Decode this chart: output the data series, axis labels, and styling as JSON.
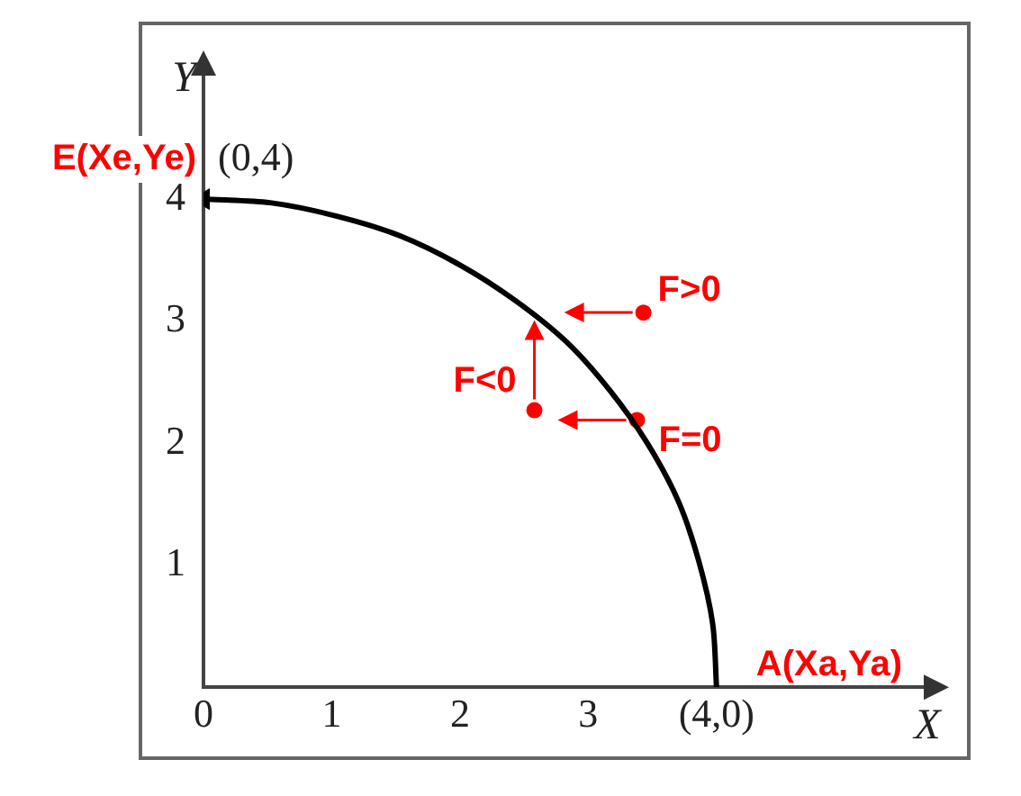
{
  "chart_data": {
    "type": "line",
    "xlabel": "X",
    "ylabel": "Y",
    "x": [
      4,
      3.97,
      3.86,
      3.7,
      3.46,
      3.17,
      2.83,
      2.43,
      2,
      1.53,
      1.04,
      0.52,
      0
    ],
    "series": [
      {
        "color": "#000000",
        "values": [
          0,
          0.52,
          1.04,
          1.53,
          2,
          2.43,
          2.83,
          3.17,
          3.46,
          3.7,
          3.86,
          3.97,
          4
        ]
      },
      {
        "type": "scatter",
        "color": "#ff0000",
        "x": [
          3.43,
          3.38,
          2.58
        ],
        "values": [
          3.07,
          2.19,
          2.27
        ],
        "marker": "circle"
      }
    ],
    "xlim": [
      0,
      5.7
    ],
    "ylim": [
      0,
      5.1
    ],
    "xticks": [
      0,
      1,
      2,
      3,
      {
        "value": 4,
        "label": "(4,0)"
      }
    ],
    "yticks": [
      1,
      2,
      3,
      4
    ],
    "grid": false,
    "legend": false,
    "annotations": [
      {
        "text": "E(Xe,Ye)",
        "x": 0,
        "y": 4
      },
      {
        "text": "(0,4)",
        "x": 0,
        "y": 4
      },
      {
        "text": "A(Xa,Ya)",
        "x": 4,
        "y": 0
      },
      {
        "text": "F>0",
        "x": 3.43,
        "y": 3.07
      },
      {
        "text": "F=0",
        "x": 3.38,
        "y": 2.19
      },
      {
        "text": "F<0",
        "x": 2.58,
        "y": 2.27
      }
    ]
  }
}
